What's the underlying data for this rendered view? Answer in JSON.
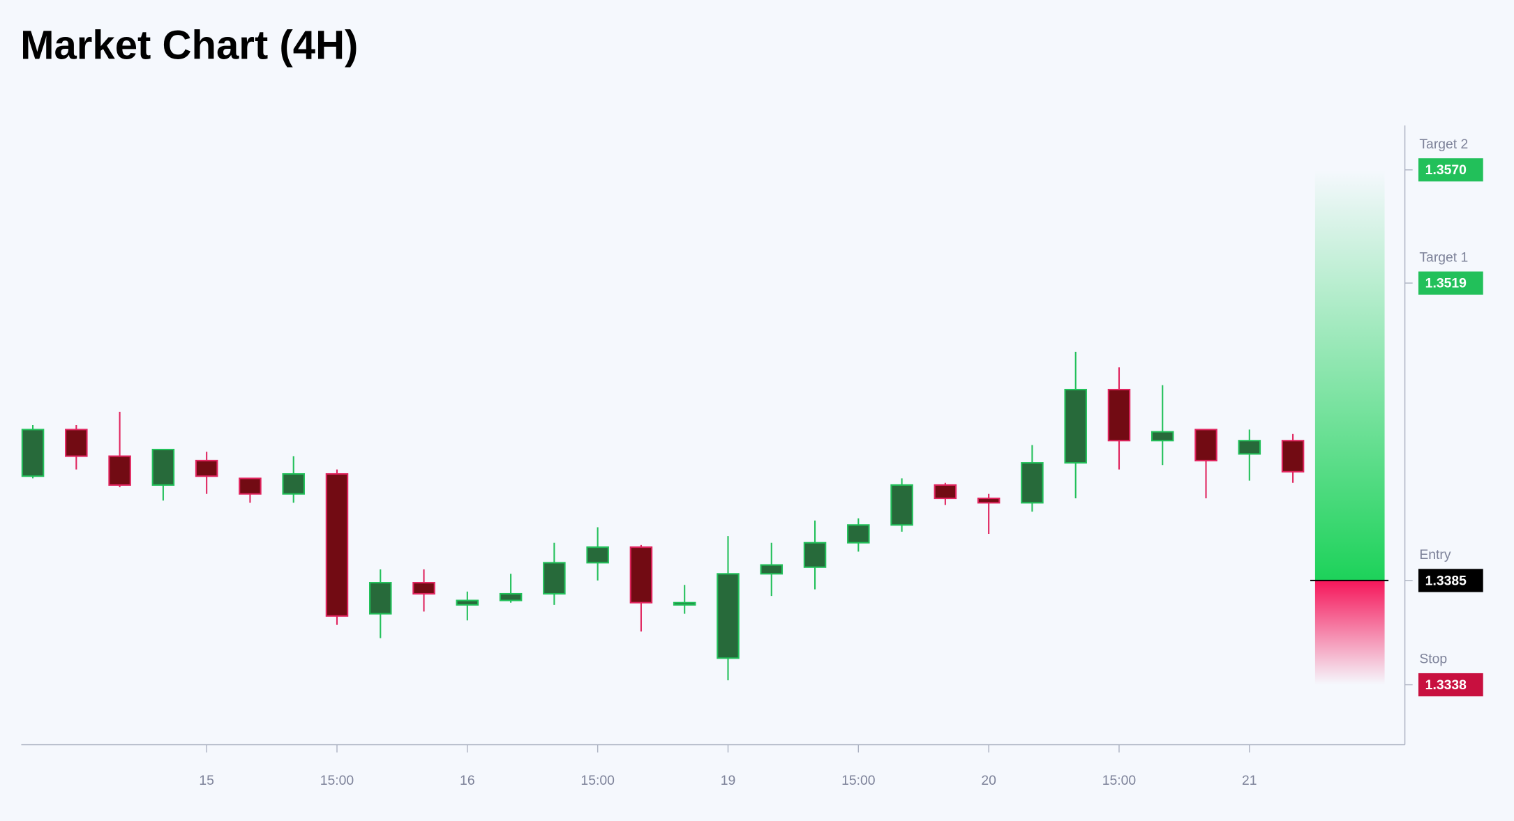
{
  "chart_data": {
    "type": "candlestick",
    "title": "Market Chart (4H)",
    "categories": [
      null,
      null,
      null,
      null,
      "15",
      null,
      null,
      "15:00",
      null,
      null,
      "16",
      null,
      null,
      "15:00",
      null,
      null,
      "19",
      null,
      null,
      "15:00",
      null,
      null,
      "20",
      null,
      null,
      "15:00",
      null,
      null,
      "21",
      null
    ],
    "open": [
      1.3432,
      1.3453,
      1.3441,
      1.3428,
      1.3439,
      1.3431,
      1.3424,
      1.3433,
      1.337,
      1.3384,
      1.3374,
      1.3376,
      1.3379,
      1.3393,
      1.34,
      1.3374,
      1.335,
      1.3388,
      1.3391,
      1.3402,
      1.341,
      1.3428,
      1.3422,
      1.342,
      1.3438,
      1.3471,
      1.3448,
      1.3453,
      1.3442,
      1.3448
    ],
    "high": [
      1.3455,
      1.3455,
      1.3461,
      1.3444,
      1.3443,
      1.3431,
      1.3441,
      1.3435,
      1.339,
      1.339,
      1.338,
      1.3388,
      1.3402,
      1.3409,
      1.3401,
      1.3383,
      1.3405,
      1.3402,
      1.3412,
      1.3413,
      1.3431,
      1.3429,
      1.3424,
      1.3446,
      1.3488,
      1.3481,
      1.3473,
      1.3453,
      1.3453,
      1.3451
    ],
    "low": [
      1.3431,
      1.3435,
      1.3427,
      1.3421,
      1.3424,
      1.342,
      1.342,
      1.3365,
      1.3359,
      1.3371,
      1.3367,
      1.3375,
      1.3374,
      1.3385,
      1.3362,
      1.337,
      1.334,
      1.3378,
      1.3381,
      1.3398,
      1.3407,
      1.3419,
      1.3406,
      1.3416,
      1.3422,
      1.3435,
      1.3437,
      1.3422,
      1.343,
      1.3429
    ],
    "close": [
      1.3453,
      1.3441,
      1.3428,
      1.3444,
      1.3432,
      1.3424,
      1.3433,
      1.3369,
      1.3384,
      1.3379,
      1.3376,
      1.3379,
      1.3393,
      1.34,
      1.3375,
      1.3375,
      1.3388,
      1.3392,
      1.3402,
      1.341,
      1.3428,
      1.3422,
      1.342,
      1.3438,
      1.3471,
      1.3448,
      1.3452,
      1.3439,
      1.3448,
      1.3434
    ],
    "up_color": "#22c05a",
    "down_color": "#e0245e",
    "ylim": [
      1.3311,
      1.359
    ],
    "levels": [
      {
        "name": "Target 2",
        "value": 1.357,
        "label": "1.3570",
        "color": "#22c05a"
      },
      {
        "name": "Target 1",
        "value": 1.3519,
        "label": "1.3519",
        "color": "#22c05a"
      },
      {
        "name": "Entry",
        "value": 1.3385,
        "label": "1.3385",
        "color": "#000000"
      },
      {
        "name": "Stop",
        "value": 1.3338,
        "label": "1.3338",
        "color": "#c8103f"
      }
    ]
  }
}
